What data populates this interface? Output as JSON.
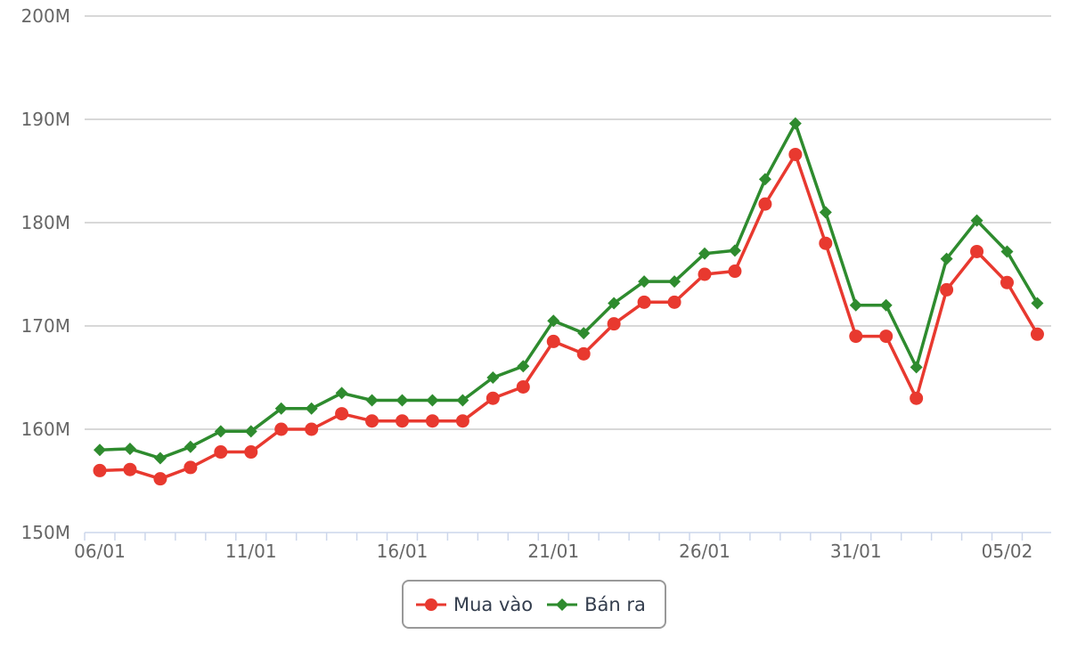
{
  "chart_data": {
    "type": "line",
    "title": "",
    "xlabel": "",
    "ylabel": "",
    "ylim": [
      150,
      200
    ],
    "y_ticks": [
      "150M",
      "160M",
      "170M",
      "180M",
      "190M",
      "200M"
    ],
    "x_tick_labels": [
      "06/01",
      "11/01",
      "16/01",
      "21/01",
      "26/01",
      "31/01",
      "05/02"
    ],
    "grid": true,
    "legend_position": "bottom-center",
    "x": [
      "06/01",
      "07/01",
      "08/01",
      "09/01",
      "10/01",
      "11/01",
      "12/01",
      "13/01",
      "14/01",
      "15/01",
      "16/01",
      "17/01",
      "18/01",
      "19/01",
      "20/01",
      "21/01",
      "22/01",
      "23/01",
      "24/01",
      "25/01",
      "26/01",
      "27/01",
      "28/01",
      "29/01",
      "30/01",
      "31/01",
      "01/02",
      "02/02",
      "03/02",
      "04/02",
      "05/02",
      "06/02"
    ],
    "series": [
      {
        "name": "Mua vào",
        "color": "#e8392f",
        "marker": "circle",
        "values": [
          156.0,
          156.1,
          155.2,
          156.3,
          157.8,
          157.8,
          160.0,
          160.0,
          161.5,
          160.8,
          160.8,
          160.8,
          160.8,
          163.0,
          164.1,
          168.5,
          167.3,
          170.2,
          172.3,
          172.3,
          175.0,
          175.3,
          181.8,
          186.6,
          178.0,
          169.0,
          169.0,
          163.0,
          173.5,
          177.2,
          174.2,
          169.2
        ]
      },
      {
        "name": "Bán ra",
        "color": "#2e8b2e",
        "marker": "diamond",
        "values": [
          158.0,
          158.1,
          157.2,
          158.3,
          159.8,
          159.8,
          162.0,
          162.0,
          163.5,
          162.8,
          162.8,
          162.8,
          162.8,
          165.0,
          166.1,
          170.5,
          169.3,
          172.2,
          174.3,
          174.3,
          177.0,
          177.3,
          184.2,
          189.6,
          181.0,
          172.0,
          172.0,
          166.0,
          176.5,
          180.2,
          177.2,
          172.2
        ]
      }
    ]
  }
}
